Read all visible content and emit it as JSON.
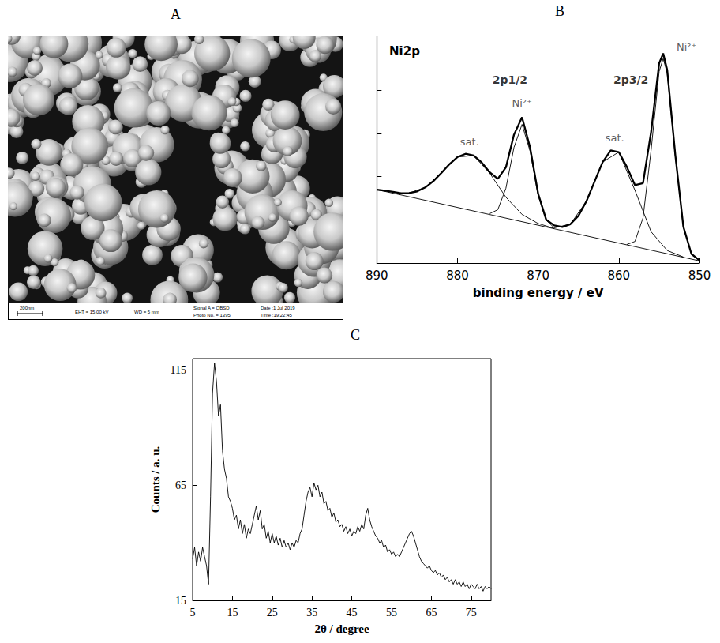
{
  "image": {
    "panel": "A",
    "scale_bar": "200nm",
    "info": [
      "EHT = 15.00 kV",
      "WD =  5 mm",
      "Signal A = QBSD",
      "Photo No. = 1395",
      "Date :1 Jul 2019",
      "Time :19:22:45"
    ]
  },
  "chart_data": [
    {
      "panel": "B",
      "type": "line",
      "title": "Ni2p",
      "xlabel": "binding energy / eV",
      "xlim": [
        890,
        850
      ],
      "xticks": [
        890,
        880,
        870,
        860,
        850
      ],
      "ylim": [
        0,
        105
      ],
      "yticks": [
        0,
        20,
        40,
        60,
        80,
        100
      ],
      "tick_labels": "x",
      "grid": false,
      "series": [
        {
          "color": "#000000",
          "line_style": "solid",
          "x": [
            890,
            889,
            888,
            887,
            886,
            885,
            884,
            883,
            882,
            881,
            880,
            879,
            878,
            877,
            876,
            875,
            874,
            873,
            872,
            871,
            870,
            869,
            868,
            867,
            866,
            865,
            864,
            863,
            862,
            861,
            860,
            859,
            858,
            857,
            856,
            855,
            854.5,
            854,
            853,
            852,
            851,
            850
          ],
          "values": [
            34.0,
            33.5,
            33.0,
            32.3,
            32.4,
            33.2,
            35.0,
            37.9,
            41.7,
            45.8,
            49.1,
            50.6,
            49.8,
            46.6,
            42.0,
            39.0,
            44.3,
            59.4,
            67.5,
            53.5,
            32.1,
            20.1,
            17.4,
            16.7,
            18.0,
            21.9,
            28.7,
            37.8,
            46.8,
            52.2,
            51.4,
            44.5,
            36.1,
            37.0,
            60.7,
            92.5,
            97.1,
            89.4,
            50.2,
            16.9,
            4.2,
            1.2
          ]
        },
        {
          "color": "#000000",
          "line_style": "solid",
          "x": [
            886,
            884,
            882,
            880,
            878,
            876,
            874,
            872,
            870,
            868
          ],
          "values": [
            32.4,
            35.0,
            41.7,
            49.1,
            49.8,
            41.6,
            30.5,
            22.5,
            18.3,
            16.0
          ]
        },
        {
          "color": "#000000",
          "line_style": "solid",
          "x": [
            876,
            875,
            874,
            873,
            872,
            871,
            870,
            869,
            868
          ],
          "values": [
            22.9,
            24.7,
            34.6,
            53.5,
            64.2,
            51.8,
            31.3,
            19.8,
            16.3
          ]
        },
        {
          "color": "#000000",
          "line_style": "solid",
          "x": [
            868,
            866,
            864,
            862,
            860,
            858,
            856,
            854,
            852
          ],
          "values": [
            16.3,
            18.0,
            28.7,
            46.8,
            51.4,
            33.7,
            14.5,
            5.8,
            2.8
          ]
        },
        {
          "color": "#000000",
          "line_style": "solid",
          "x": [
            859,
            858,
            857,
            856,
            855,
            854.5,
            854,
            853,
            852,
            851,
            850
          ],
          "values": [
            8.6,
            10.0,
            20.9,
            52.2,
            88.7,
            94.7,
            87.9,
            49.7,
            16.8,
            4.2,
            1.2
          ]
        },
        {
          "color": "#000000",
          "line_style": "solid",
          "x": [
            890,
            850
          ],
          "values": [
            34,
            1
          ]
        }
      ],
      "group_labels": [
        {
          "text": "2p1/2",
          "x": 873.5,
          "y": 85
        },
        {
          "text": "2p3/2",
          "x": 858.5,
          "y": 85
        }
      ],
      "annotations": [
        {
          "text": "sat.",
          "x": 878.5,
          "y": 56
        },
        {
          "text": "Ni²⁺",
          "x": 872,
          "y": 74
        },
        {
          "text": "sat.",
          "x": 860.5,
          "y": 58
        },
        {
          "text": "Ni²⁺",
          "x": 851.6,
          "y": 100
        }
      ]
    },
    {
      "panel": "C",
      "type": "line",
      "xlabel": "2θ / degree",
      "ylabel": "Counts / a. u.",
      "xlim": [
        5,
        80
      ],
      "xticks": [
        5,
        15,
        25,
        35,
        45,
        55,
        65,
        75
      ],
      "ylim": [
        15,
        120
      ],
      "yticks": [
        15,
        65,
        115
      ],
      "grid": false,
      "color": "#000000",
      "x": [
        5,
        5.5,
        6,
        6.5,
        7,
        7.5,
        8,
        8.5,
        9,
        9.5,
        10,
        10.5,
        11,
        11.5,
        12,
        12.5,
        13,
        13.5,
        14,
        14.5,
        15,
        15.5,
        16,
        16.5,
        17,
        17.5,
        18,
        18.5,
        19,
        19.5,
        20,
        20.5,
        21,
        21.5,
        22,
        22.5,
        23,
        23.5,
        24,
        24.5,
        25,
        25.5,
        26,
        26.5,
        27,
        27.5,
        28,
        28.5,
        29,
        29.5,
        30,
        30.5,
        31,
        31.5,
        32,
        32.5,
        33,
        33.5,
        34,
        34.5,
        35,
        35.5,
        36,
        36.5,
        37,
        37.5,
        38,
        38.5,
        39,
        39.5,
        40,
        40.5,
        41,
        41.5,
        42,
        42.5,
        43,
        43.5,
        44,
        44.5,
        45,
        45.5,
        46,
        46.5,
        47,
        47.5,
        48,
        48.5,
        49,
        49.5,
        50,
        50.5,
        51,
        51.5,
        52,
        52.5,
        53,
        53.5,
        54,
        54.5,
        55,
        55.5,
        56,
        56.5,
        57,
        57.5,
        58,
        58.5,
        59,
        59.5,
        60,
        60.5,
        61,
        61.5,
        62,
        62.5,
        63,
        63.5,
        64,
        64.5,
        65,
        65.5,
        66,
        66.5,
        67,
        67.5,
        68,
        68.5,
        69,
        69.5,
        70,
        70.5,
        71,
        71.5,
        72,
        72.5,
        73,
        73.5,
        74,
        74.5,
        75,
        75.5,
        76,
        76.5,
        77,
        77.5,
        78,
        78.5,
        79,
        79.5,
        80
      ],
      "values": [
        33,
        38,
        30,
        36,
        32,
        38,
        34,
        30,
        22,
        60,
        105,
        118,
        110,
        95,
        100,
        80,
        72,
        68,
        60,
        58,
        55,
        50,
        52,
        46,
        50,
        44,
        48,
        42,
        46,
        44,
        48,
        52,
        56,
        50,
        54,
        46,
        48,
        42,
        45,
        40,
        44,
        40,
        43,
        39,
        42,
        38,
        41,
        38,
        40,
        37,
        40,
        38,
        41,
        40,
        44,
        46,
        52,
        58,
        62,
        64,
        60,
        66,
        63,
        65,
        60,
        62,
        57,
        58,
        54,
        55,
        51,
        53,
        49,
        50,
        47,
        48,
        45,
        47,
        44,
        46,
        43,
        45,
        44,
        47,
        45,
        48,
        46,
        52,
        55,
        50,
        47,
        45,
        43,
        42,
        40,
        41,
        38,
        39,
        36,
        37,
        35,
        36,
        34,
        35,
        34,
        36,
        38,
        40,
        42,
        44,
        45,
        43,
        40,
        37,
        34,
        32,
        31,
        30,
        29,
        30,
        28,
        27,
        28,
        26,
        27,
        25,
        26,
        24,
        25,
        23,
        24,
        22,
        24,
        22,
        23,
        21,
        23,
        21,
        22,
        20,
        22,
        21,
        20,
        22,
        20,
        21,
        19,
        21,
        20,
        21,
        20
      ]
    }
  ]
}
